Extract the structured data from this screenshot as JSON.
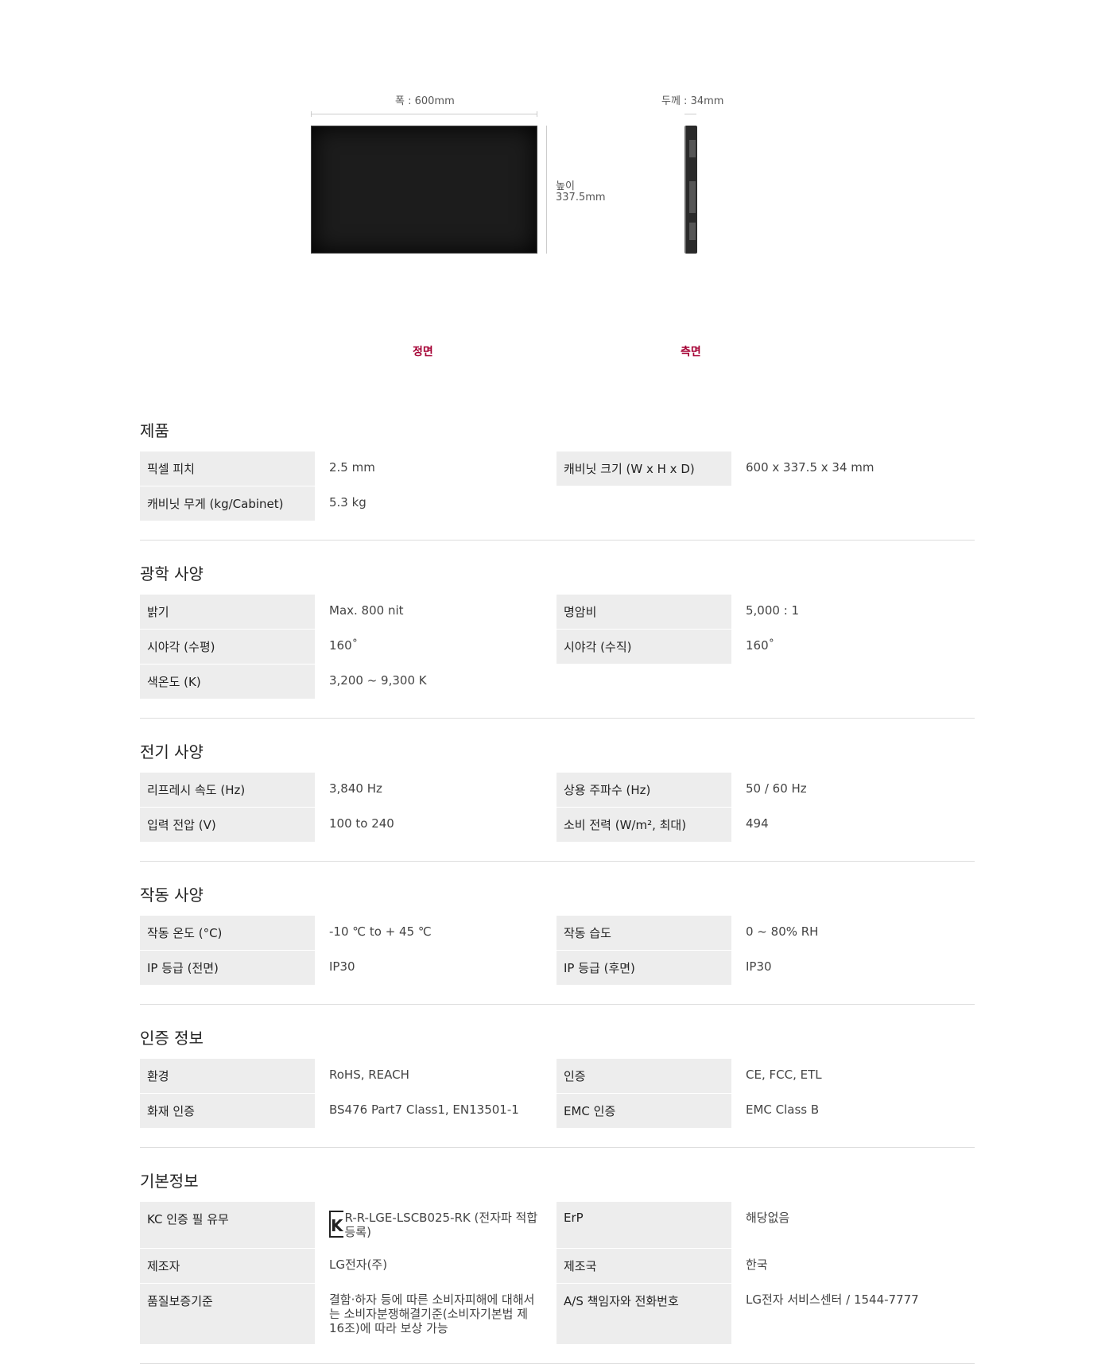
{
  "diagram": {
    "width_label": "폭 : 600mm",
    "height_label_1": "높이",
    "height_label_2": "337.5mm",
    "depth_label": "두께 : 34mm",
    "front_caption": "정면",
    "side_caption": "측면",
    "caption_color": "#a50034"
  },
  "sections": [
    {
      "title": "제품",
      "rows": [
        [
          "픽셀 피치",
          "2.5 mm",
          "캐비닛 크기 (W x H x D)",
          "600 x 337.5 x 34 mm"
        ],
        [
          "캐비닛 무게 (kg/Cabinet)",
          "5.3 kg",
          "",
          ""
        ]
      ]
    },
    {
      "title": "광학 사양",
      "rows": [
        [
          "밝기",
          "Max. 800 nit",
          "명암비",
          "5,000 : 1"
        ],
        [
          "시야각 (수평)",
          "160˚",
          "시야각 (수직)",
          "160˚"
        ],
        [
          "색온도 (K)",
          "3,200 ~ 9,300 K",
          "",
          ""
        ]
      ]
    },
    {
      "title": "전기 사양",
      "rows": [
        [
          "리프레시 속도 (Hz)",
          "3,840 Hz",
          "상용 주파수 (Hz)",
          "50 / 60 Hz"
        ],
        [
          "입력 전압 (V)",
          "100 to 240",
          "소비 전력 (W/m², 최대)",
          "494"
        ]
      ]
    },
    {
      "title": "작동 사양",
      "rows": [
        [
          "작동 온도 (°C)",
          "-10 ℃ to + 45 ℃",
          "작동 습도",
          "0 ~ 80% RH"
        ],
        [
          "IP 등급 (전면)",
          "IP30",
          "IP 등급 (후면)",
          "IP30"
        ]
      ]
    },
    {
      "title": "인증 정보",
      "rows": [
        [
          "환경",
          "RoHS, REACH",
          "인증",
          "CE, FCC, ETL"
        ],
        [
          "화재 인증",
          "BS476 Part7 Class1, EN13501-1",
          "EMC 인증",
          "EMC Class B"
        ]
      ]
    },
    {
      "title": "기본정보",
      "rows": [
        [
          "KC 인증 필 유무",
          "R-R-LGE-LSCB025-RK (전자파 적합등록)",
          "ErP",
          "해당없음"
        ],
        [
          "제조자",
          "LG전자(주)",
          "제조국",
          "한국"
        ],
        [
          "품질보증기준",
          "결함·하자 등에 따른 소비자피해에 대해서는 소비자분쟁해결기준(소비자기본법 제16조)에 따라 보상 가능",
          "A/S 책임자와 전화번호",
          "LG전자 서비스센터 / 1544-7777"
        ]
      ]
    }
  ],
  "icons": {
    "kc": "kc-certification-mark"
  }
}
